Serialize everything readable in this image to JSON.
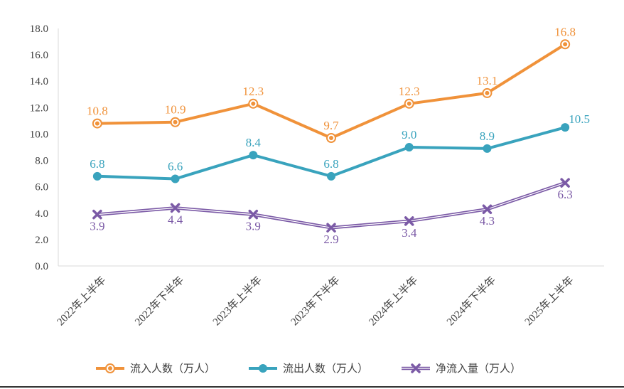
{
  "chart_data": {
    "type": "line",
    "title": "",
    "xlabel": "",
    "ylabel": "",
    "ylim": [
      0,
      18
    ],
    "yticks": [
      "0.0",
      "2.0",
      "4.0",
      "6.0",
      "8.0",
      "10.0",
      "12.0",
      "14.0",
      "16.0",
      "18.0"
    ],
    "grid": false,
    "legend_position": "bottom",
    "categories": [
      "2022年上半年",
      "2022年下半年",
      "2023年上半年",
      "2023年下半年",
      "2024年上半年",
      "2024年下半年",
      "2025年上半年"
    ],
    "series": [
      {
        "name": "流入人数（万人）",
        "values": [
          10.8,
          10.9,
          12.3,
          9.7,
          12.3,
          13.1,
          16.8
        ],
        "labels": [
          "10.8",
          "10.9",
          "12.3",
          "9.7",
          "12.3",
          "13.1",
          "16.8"
        ],
        "color": "#f0923a",
        "marker": "double-circle",
        "label_position": "above"
      },
      {
        "name": "流出人数（万人）",
        "values": [
          6.8,
          6.6,
          8.4,
          6.8,
          9.0,
          8.9,
          10.5
        ],
        "labels": [
          "6.8",
          "6.6",
          "8.4",
          "6.8",
          "9.0",
          "8.9",
          "10.5"
        ],
        "color": "#39a3bd",
        "marker": "circle",
        "label_position": "above"
      },
      {
        "name": "净流入量（万人）",
        "values": [
          3.9,
          4.4,
          3.9,
          2.9,
          3.4,
          4.3,
          6.3
        ],
        "labels": [
          "3.9",
          "4.4",
          "3.9",
          "2.9",
          "3.4",
          "4.3",
          "6.3"
        ],
        "color": "#7b5aa6",
        "marker": "cross",
        "label_position": "below"
      }
    ]
  }
}
